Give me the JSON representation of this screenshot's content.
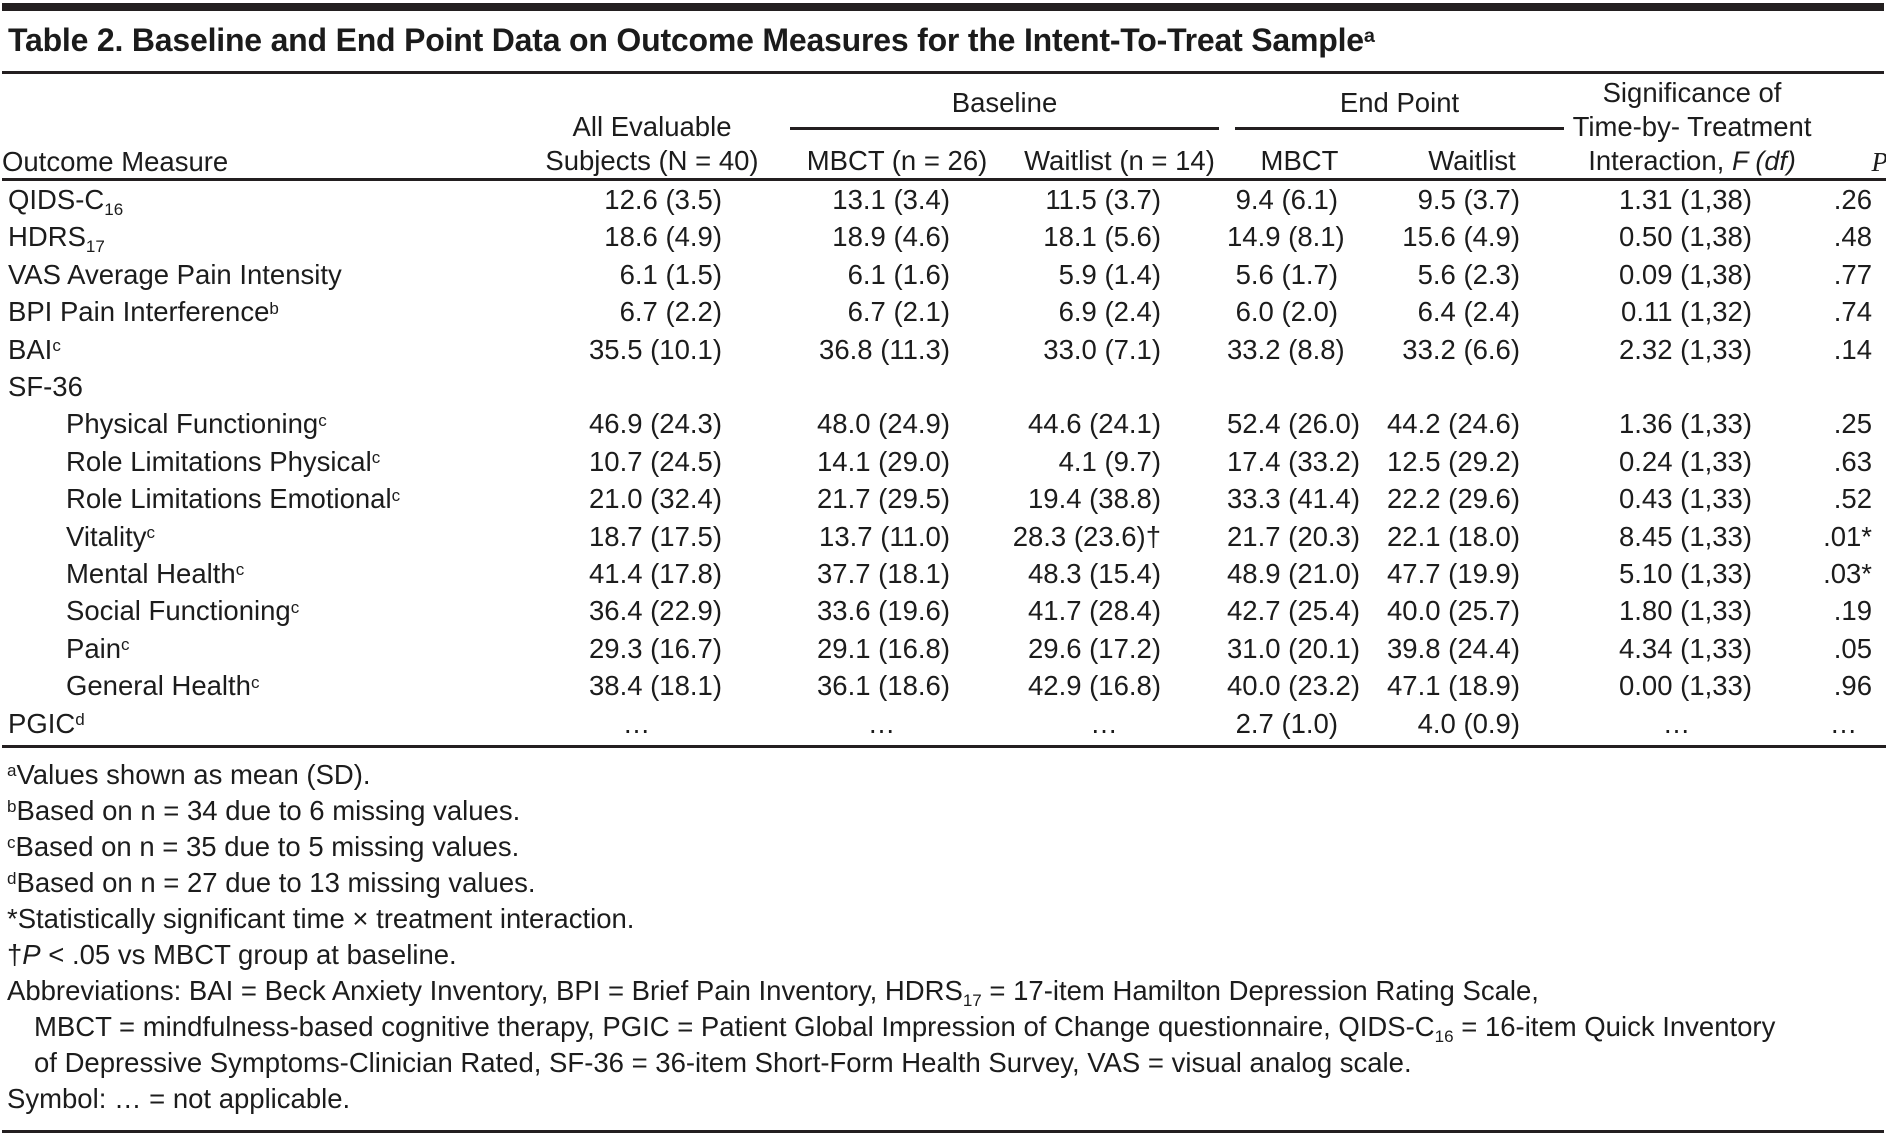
{
  "title_segments": [
    {
      "t": "Table 2. Baseline and End Point Data on Outcome Measures for the Intent-To-Treat Sample"
    },
    {
      "sup": "a"
    }
  ],
  "header": {
    "outcome_measure": "Outcome Measure",
    "all_evaluable_lines": [
      "All Evaluable",
      "Subjects (N = 40)"
    ],
    "baseline_label": "Baseline",
    "baseline_columns": [
      "MBCT (n = 26)",
      "Waitlist (n = 14)"
    ],
    "endpoint_label": "End Point",
    "endpoint_columns": [
      "MBCT",
      "Waitlist"
    ],
    "significance_lines": [
      [
        {
          "t": "Significance of"
        }
      ],
      [
        {
          "t": "Time-by- Treatment"
        }
      ],
      [
        {
          "t": "Interaction, "
        },
        {
          "i": "F (df)"
        }
      ]
    ],
    "p_label_segments": [
      {
        "i": "P"
      }
    ]
  },
  "rows": [
    {
      "label": [
        {
          "t": "QIDS-C"
        },
        {
          "sub": "16"
        }
      ],
      "indent": false,
      "cells": [
        "12.6 (3.5)",
        "13.1 (3.4)",
        "11.5 (3.7)",
        "9.4 (6.1)",
        "9.5 (3.7)",
        "1.31 (1,38)",
        ".26"
      ]
    },
    {
      "label": [
        {
          "t": "HDRS"
        },
        {
          "sub": "17"
        }
      ],
      "indent": false,
      "cells": [
        "18.6 (4.9)",
        "18.9 (4.6)",
        "18.1 (5.6)",
        "14.9 (8.1)",
        "15.6 (4.9)",
        "0.50 (1,38)",
        ".48"
      ]
    },
    {
      "label": [
        {
          "t": "VAS Average Pain Intensity"
        }
      ],
      "indent": false,
      "cells": [
        "6.1 (1.5)",
        "6.1 (1.6)",
        "5.9 (1.4)",
        "5.6 (1.7)",
        "5.6 (2.3)",
        "0.09 (1,38)",
        ".77"
      ]
    },
    {
      "label": [
        {
          "t": "BPI Pain Interference"
        },
        {
          "sup": "b"
        }
      ],
      "indent": false,
      "cells": [
        "6.7 (2.2)",
        "6.7 (2.1)",
        "6.9 (2.4)",
        "6.0 (2.0)",
        "6.4 (2.4)",
        "0.11 (1,32)",
        ".74"
      ]
    },
    {
      "label": [
        {
          "t": "BAI"
        },
        {
          "sup": "c"
        }
      ],
      "indent": false,
      "cells": [
        "35.5 (10.1)",
        "36.8 (11.3)",
        "33.0 (7.1)",
        "33.2 (8.8)",
        "33.2 (6.6)",
        "2.32 (1,33)",
        ".14"
      ]
    },
    {
      "label": [
        {
          "t": "SF-36"
        }
      ],
      "indent": false,
      "cells": [
        "",
        "",
        "",
        "",
        "",
        "",
        ""
      ]
    },
    {
      "label": [
        {
          "t": "Physical Functioning"
        },
        {
          "sup": "c"
        }
      ],
      "indent": true,
      "cells": [
        "46.9 (24.3)",
        "48.0 (24.9)",
        "44.6 (24.1)",
        "52.4 (26.0)",
        "44.2 (24.6)",
        "1.36 (1,33)",
        ".25"
      ]
    },
    {
      "label": [
        {
          "t": "Role Limitations Physical"
        },
        {
          "sup": "c"
        }
      ],
      "indent": true,
      "cells": [
        "10.7 (24.5)",
        "14.1 (29.0)",
        "4.1 (9.7)",
        "17.4 (33.2)",
        "12.5 (29.2)",
        "0.24 (1,33)",
        ".63"
      ]
    },
    {
      "label": [
        {
          "t": "Role Limitations Emotional"
        },
        {
          "sup": "c"
        }
      ],
      "indent": true,
      "cells": [
        "21.0 (32.4)",
        "21.7 (29.5)",
        "19.4 (38.8)",
        "33.3 (41.4)",
        "22.2 (29.6)",
        "0.43 (1,33)",
        ".52"
      ]
    },
    {
      "label": [
        {
          "t": "Vitality"
        },
        {
          "sup": "c"
        }
      ],
      "indent": true,
      "cells": [
        "18.7 (17.5)",
        "13.7 (11.0)",
        "28.3 (23.6)†",
        "21.7 (20.3)",
        "22.1 (18.0)",
        "8.45 (1,33)",
        ".01*"
      ]
    },
    {
      "label": [
        {
          "t": "Mental Health"
        },
        {
          "sup": "c"
        }
      ],
      "indent": true,
      "cells": [
        "41.4 (17.8)",
        "37.7 (18.1)",
        "48.3 (15.4)",
        "48.9 (21.0)",
        "47.7 (19.9)",
        "5.10 (1,33)",
        ".03*"
      ]
    },
    {
      "label": [
        {
          "t": "Social Functioning"
        },
        {
          "sup": "c"
        }
      ],
      "indent": true,
      "cells": [
        "36.4 (22.9)",
        "33.6 (19.6)",
        "41.7 (28.4)",
        "42.7 (25.4)",
        "40.0 (25.7)",
        "1.80 (1,33)",
        ".19"
      ]
    },
    {
      "label": [
        {
          "t": "Pain"
        },
        {
          "sup": "c"
        }
      ],
      "indent": true,
      "cells": [
        "29.3 (16.7)",
        "29.1 (16.8)",
        "29.6 (17.2)",
        "31.0 (20.1)",
        "39.8 (24.4)",
        "4.34 (1,33)",
        ".05"
      ]
    },
    {
      "label": [
        {
          "t": "General Health"
        },
        {
          "sup": "c"
        }
      ],
      "indent": true,
      "cells": [
        "38.4 (18.1)",
        "36.1 (18.6)",
        "42.9 (16.8)",
        "40.0 (23.2)",
        "47.1 (18.9)",
        "0.00 (1,33)",
        ".96"
      ]
    },
    {
      "label": [
        {
          "t": "PGIC"
        },
        {
          "sup": "d"
        }
      ],
      "indent": false,
      "cells": [
        "…",
        "…",
        "…",
        "2.7 (1.0)",
        "4.0 (0.9)",
        "…",
        "…"
      ]
    }
  ],
  "footnotes": [
    {
      "indent": false,
      "segments": [
        {
          "sup": "a"
        },
        {
          "t": "Values shown as mean (SD)."
        }
      ]
    },
    {
      "indent": false,
      "segments": [
        {
          "sup": "b"
        },
        {
          "t": "Based on n = 34 due to 6 missing values."
        }
      ]
    },
    {
      "indent": false,
      "segments": [
        {
          "sup": "c"
        },
        {
          "t": "Based on n = 35 due to 5 missing values."
        }
      ]
    },
    {
      "indent": false,
      "segments": [
        {
          "sup": "d"
        },
        {
          "t": "Based on n = 27 due to 13 missing values."
        }
      ]
    },
    {
      "indent": false,
      "segments": [
        {
          "t": "*Statistically significant time × treatment interaction."
        }
      ]
    },
    {
      "indent": false,
      "segments": [
        {
          "t": "†"
        },
        {
          "i": "P"
        },
        {
          "t": " < .05 vs MBCT group at baseline."
        }
      ]
    },
    {
      "indent": false,
      "segments": [
        {
          "t": "Abbreviations: BAI = Beck Anxiety Inventory, BPI = Brief Pain Inventory, HDRS"
        },
        {
          "sub": "17"
        },
        {
          "t": " = 17-item Hamilton Depression Rating Scale,"
        }
      ]
    },
    {
      "indent": true,
      "segments": [
        {
          "t": "MBCT = mindfulness-based cognitive therapy, PGIC = Patient Global Impression of Change questionnaire, QIDS-C"
        },
        {
          "sub": "16"
        },
        {
          "t": " = 16-item Quick Inventory"
        }
      ]
    },
    {
      "indent": true,
      "segments": [
        {
          "t": "of Depressive Symptoms-Clinician Rated, SF-36 = 36-item Short-Form Health Survey, VAS = visual analog scale."
        }
      ]
    },
    {
      "indent": false,
      "segments": [
        {
          "t": "Symbol: … = not applicable."
        }
      ]
    }
  ],
  "colors": {
    "text": "#1c1c1c",
    "rule": "#231f20"
  }
}
